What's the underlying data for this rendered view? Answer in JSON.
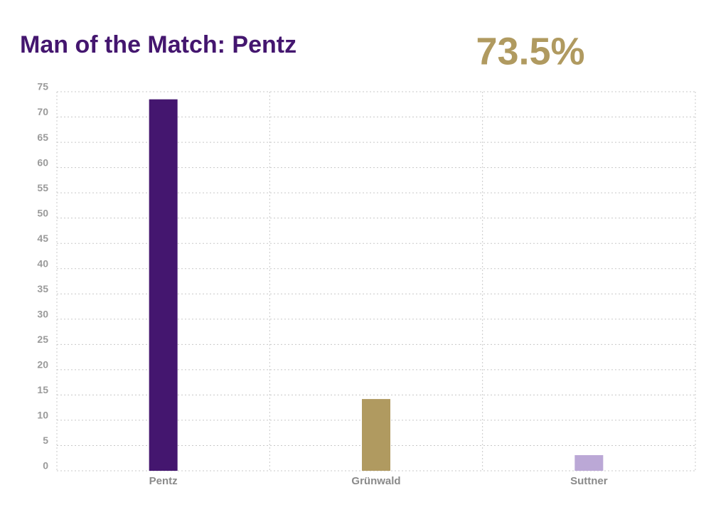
{
  "chart_data": {
    "type": "bar",
    "title": "Man of the Match: Pentz",
    "headline": "73.5%",
    "categories": [
      "Pentz",
      "Grünwald",
      "Suttner"
    ],
    "values": [
      73.5,
      14.2,
      3.1
    ],
    "colors": [
      "#44166f",
      "#b09a60",
      "#bba8d6"
    ],
    "ylim": [
      0,
      75
    ],
    "yticks": [
      0,
      5,
      10,
      15,
      20,
      25,
      30,
      35,
      40,
      45,
      50,
      55,
      60,
      65,
      70,
      75
    ],
    "grid": true
  }
}
